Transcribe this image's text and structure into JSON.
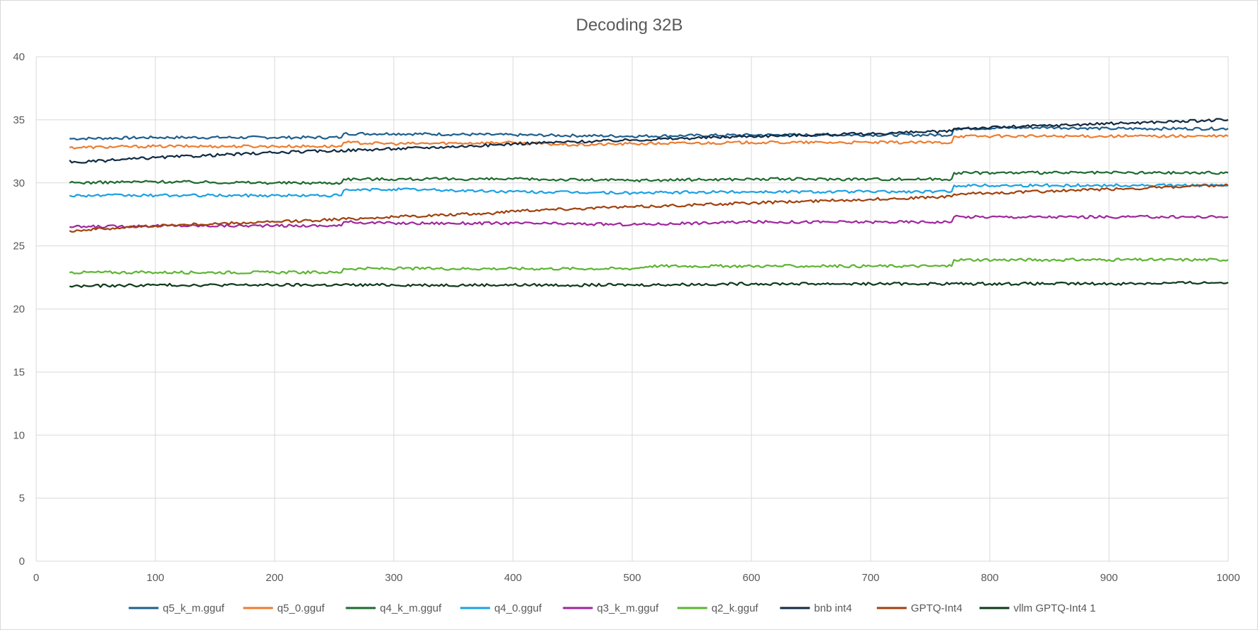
{
  "chart_data": {
    "type": "line",
    "title": "Decoding 32B",
    "xlabel": "",
    "ylabel": "",
    "xlim": [
      0,
      1000
    ],
    "ylim": [
      0,
      40
    ],
    "x_ticks": [
      0,
      100,
      200,
      300,
      400,
      500,
      600,
      700,
      800,
      900,
      1000
    ],
    "y_ticks": [
      0,
      5,
      10,
      15,
      20,
      25,
      30,
      35,
      40
    ],
    "grid": true,
    "legend_position": "bottom",
    "series": [
      {
        "name": "q5_k_m.gguf",
        "color": "#1f5f8b",
        "points": [
          [
            28,
            33.5
          ],
          [
            100,
            33.6
          ],
          [
            200,
            33.6
          ],
          [
            256,
            33.6
          ],
          [
            258,
            33.9
          ],
          [
            300,
            33.9
          ],
          [
            400,
            33.8
          ],
          [
            500,
            33.7
          ],
          [
            600,
            33.8
          ],
          [
            700,
            33.8
          ],
          [
            768,
            33.8
          ],
          [
            770,
            34.3
          ],
          [
            850,
            34.4
          ],
          [
            900,
            34.3
          ],
          [
            1000,
            34.3
          ]
        ]
      },
      {
        "name": "q5_0.gguf",
        "color": "#ed7d31",
        "points": [
          [
            28,
            32.8
          ],
          [
            100,
            32.9
          ],
          [
            200,
            32.9
          ],
          [
            256,
            32.9
          ],
          [
            258,
            33.2
          ],
          [
            300,
            33.1
          ],
          [
            400,
            33.2
          ],
          [
            450,
            33.0
          ],
          [
            500,
            33.1
          ],
          [
            600,
            33.2
          ],
          [
            700,
            33.2
          ],
          [
            768,
            33.2
          ],
          [
            770,
            33.7
          ],
          [
            900,
            33.7
          ],
          [
            1000,
            33.7
          ]
        ]
      },
      {
        "name": "q4_k_m.gguf",
        "color": "#1e6b2f",
        "points": [
          [
            28,
            30.0
          ],
          [
            100,
            30.1
          ],
          [
            200,
            30.0
          ],
          [
            256,
            30.0
          ],
          [
            258,
            30.3
          ],
          [
            400,
            30.3
          ],
          [
            500,
            30.2
          ],
          [
            600,
            30.3
          ],
          [
            700,
            30.3
          ],
          [
            768,
            30.3
          ],
          [
            770,
            30.8
          ],
          [
            900,
            30.8
          ],
          [
            1000,
            30.8
          ]
        ]
      },
      {
        "name": "q4_0.gguf",
        "color": "#1ba1e2",
        "points": [
          [
            28,
            29.0
          ],
          [
            100,
            29.0
          ],
          [
            200,
            29.0
          ],
          [
            256,
            29.0
          ],
          [
            258,
            29.4
          ],
          [
            300,
            29.5
          ],
          [
            400,
            29.3
          ],
          [
            500,
            29.2
          ],
          [
            600,
            29.3
          ],
          [
            700,
            29.3
          ],
          [
            768,
            29.3
          ],
          [
            770,
            29.8
          ],
          [
            900,
            29.8
          ],
          [
            1000,
            29.8
          ]
        ]
      },
      {
        "name": "q3_k_m.gguf",
        "color": "#a0279e",
        "points": [
          [
            28,
            26.5
          ],
          [
            100,
            26.6
          ],
          [
            200,
            26.6
          ],
          [
            256,
            26.6
          ],
          [
            258,
            26.9
          ],
          [
            300,
            26.8
          ],
          [
            400,
            26.8
          ],
          [
            500,
            26.7
          ],
          [
            600,
            26.9
          ],
          [
            700,
            26.9
          ],
          [
            768,
            26.9
          ],
          [
            770,
            27.3
          ],
          [
            900,
            27.3
          ],
          [
            1000,
            27.3
          ]
        ]
      },
      {
        "name": "q2_k.gguf",
        "color": "#5cb532",
        "points": [
          [
            28,
            22.9
          ],
          [
            100,
            22.9
          ],
          [
            200,
            22.9
          ],
          [
            256,
            22.9
          ],
          [
            258,
            23.2
          ],
          [
            400,
            23.2
          ],
          [
            500,
            23.2
          ],
          [
            515,
            23.4
          ],
          [
            600,
            23.4
          ],
          [
            700,
            23.4
          ],
          [
            768,
            23.4
          ],
          [
            770,
            23.9
          ],
          [
            900,
            23.9
          ],
          [
            1000,
            23.9
          ]
        ]
      },
      {
        "name": "bnb int4",
        "color": "#102a43",
        "points": [
          [
            28,
            31.8
          ],
          [
            30,
            31.6
          ],
          [
            100,
            32.0
          ],
          [
            200,
            32.4
          ],
          [
            300,
            32.7
          ],
          [
            385,
            33.0
          ],
          [
            400,
            33.1
          ],
          [
            500,
            33.4
          ],
          [
            600,
            33.7
          ],
          [
            700,
            33.9
          ],
          [
            768,
            34.1
          ],
          [
            770,
            34.3
          ],
          [
            900,
            34.7
          ],
          [
            1000,
            35.0
          ]
        ]
      },
      {
        "name": "GPTQ-Int4",
        "color": "#a0410d",
        "points": [
          [
            28,
            26.2
          ],
          [
            100,
            26.6
          ],
          [
            200,
            26.9
          ],
          [
            300,
            27.3
          ],
          [
            385,
            27.6
          ],
          [
            400,
            27.8
          ],
          [
            500,
            28.1
          ],
          [
            600,
            28.4
          ],
          [
            700,
            28.7
          ],
          [
            768,
            28.9
          ],
          [
            770,
            29.1
          ],
          [
            900,
            29.5
          ],
          [
            1000,
            29.8
          ]
        ]
      },
      {
        "name": "vllm GPTQ-Int4  1",
        "color": "#0e3a1a",
        "points": [
          [
            28,
            21.8
          ],
          [
            100,
            21.9
          ],
          [
            200,
            21.9
          ],
          [
            300,
            21.9
          ],
          [
            400,
            21.9
          ],
          [
            500,
            21.9
          ],
          [
            600,
            22.0
          ],
          [
            700,
            22.0
          ],
          [
            800,
            22.0
          ],
          [
            900,
            22.0
          ],
          [
            1000,
            22.1
          ]
        ]
      }
    ]
  }
}
